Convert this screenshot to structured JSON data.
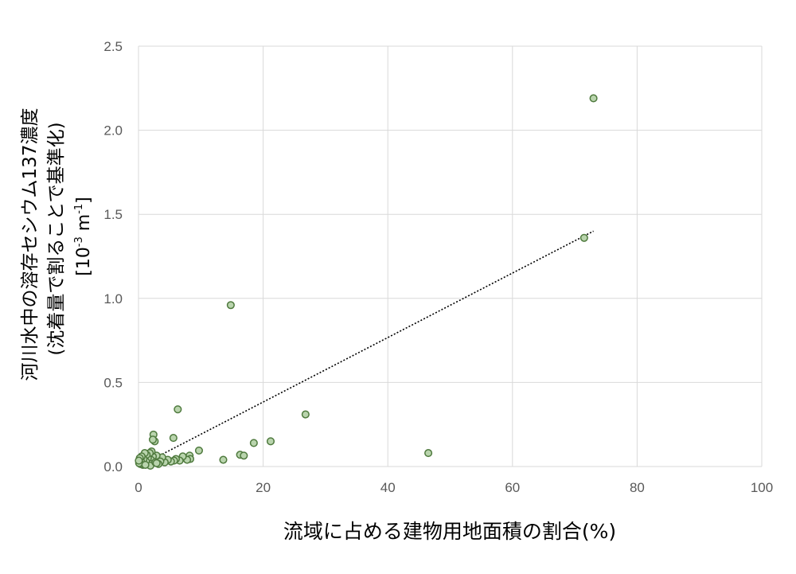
{
  "chart_data": {
    "type": "scatter",
    "title": "",
    "xlabel": "流域に占める建物用地面積の割合(%)",
    "ylabel_lines": [
      "河川水中の溶存セシウム137濃度",
      "(沈着量で割ることで基準化)"
    ],
    "ylabel_unit": {
      "prefix": "[10",
      "exp1": "-3",
      "mid": " m",
      "exp2": "-1",
      "suffix": "]"
    },
    "xlim": [
      0,
      100
    ],
    "ylim": [
      0,
      2.5
    ],
    "x_ticks": [
      0,
      20,
      40,
      60,
      80,
      100
    ],
    "y_ticks": [
      0.0,
      0.5,
      1.0,
      1.5,
      2.0,
      2.5
    ],
    "x_tick_labels": [
      "0",
      "20",
      "40",
      "60",
      "80",
      "100"
    ],
    "y_tick_labels": [
      "0.0",
      "0.5",
      "1.0",
      "1.5",
      "2.0",
      "2.5"
    ],
    "grid": true,
    "legend": "none",
    "marker_fill": "#b9d4ad",
    "marker_edge": "#4f7a3e",
    "trendline": {
      "style": "dotted",
      "color": "#000000",
      "x": [
        0,
        73
      ],
      "y": [
        0.0,
        1.4
      ]
    },
    "points": [
      {
        "x": 73.0,
        "y": 2.19
      },
      {
        "x": 71.5,
        "y": 1.36
      },
      {
        "x": 14.8,
        "y": 0.96
      },
      {
        "x": 6.3,
        "y": 0.34
      },
      {
        "x": 26.8,
        "y": 0.31
      },
      {
        "x": 46.5,
        "y": 0.08
      },
      {
        "x": 21.2,
        "y": 0.15
      },
      {
        "x": 18.5,
        "y": 0.14
      },
      {
        "x": 16.3,
        "y": 0.07
      },
      {
        "x": 16.9,
        "y": 0.065
      },
      {
        "x": 13.6,
        "y": 0.04
      },
      {
        "x": 9.7,
        "y": 0.095
      },
      {
        "x": 8.2,
        "y": 0.065
      },
      {
        "x": 8.3,
        "y": 0.045
      },
      {
        "x": 7.8,
        "y": 0.04
      },
      {
        "x": 7.1,
        "y": 0.06
      },
      {
        "x": 6.6,
        "y": 0.035
      },
      {
        "x": 6.0,
        "y": 0.045
      },
      {
        "x": 5.7,
        "y": 0.035
      },
      {
        "x": 5.6,
        "y": 0.17
      },
      {
        "x": 5.2,
        "y": 0.03
      },
      {
        "x": 4.7,
        "y": 0.04
      },
      {
        "x": 4.2,
        "y": 0.025
      },
      {
        "x": 3.8,
        "y": 0.055
      },
      {
        "x": 3.5,
        "y": 0.03
      },
      {
        "x": 3.2,
        "y": 0.015
      },
      {
        "x": 2.9,
        "y": 0.065
      },
      {
        "x": 2.6,
        "y": 0.15
      },
      {
        "x": 2.4,
        "y": 0.19
      },
      {
        "x": 2.3,
        "y": 0.16
      },
      {
        "x": 2.3,
        "y": 0.06
      },
      {
        "x": 2.1,
        "y": 0.09
      },
      {
        "x": 2.0,
        "y": 0.04
      },
      {
        "x": 1.8,
        "y": 0.08
      },
      {
        "x": 1.7,
        "y": 0.02
      },
      {
        "x": 1.5,
        "y": 0.05
      },
      {
        "x": 1.3,
        "y": 0.07
      },
      {
        "x": 1.2,
        "y": 0.03
      },
      {
        "x": 1.0,
        "y": 0.08
      },
      {
        "x": 0.8,
        "y": 0.045
      },
      {
        "x": 0.7,
        "y": 0.01
      },
      {
        "x": 0.5,
        "y": 0.06
      },
      {
        "x": 0.4,
        "y": 0.03
      },
      {
        "x": 0.3,
        "y": 0.015
      },
      {
        "x": 0.2,
        "y": 0.05
      },
      {
        "x": 0.1,
        "y": 0.02
      },
      {
        "x": 0.05,
        "y": 0.035
      },
      {
        "x": 1.9,
        "y": 0.005
      },
      {
        "x": 1.1,
        "y": 0.01
      },
      {
        "x": 2.7,
        "y": 0.025
      },
      {
        "x": 2.9,
        "y": 0.02
      }
    ]
  }
}
